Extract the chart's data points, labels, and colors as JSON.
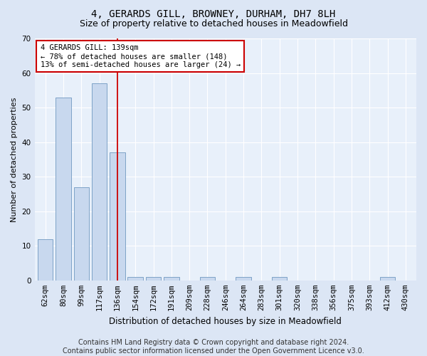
{
  "title": "4, GERARDS GILL, BROWNEY, DURHAM, DH7 8LH",
  "subtitle": "Size of property relative to detached houses in Meadowfield",
  "xlabel": "Distribution of detached houses by size in Meadowfield",
  "ylabel": "Number of detached properties",
  "categories": [
    "62sqm",
    "80sqm",
    "99sqm",
    "117sqm",
    "136sqm",
    "154sqm",
    "172sqm",
    "191sqm",
    "209sqm",
    "228sqm",
    "246sqm",
    "264sqm",
    "283sqm",
    "301sqm",
    "320sqm",
    "338sqm",
    "356sqm",
    "375sqm",
    "393sqm",
    "412sqm",
    "430sqm"
  ],
  "values": [
    12,
    53,
    27,
    57,
    37,
    1,
    1,
    1,
    0,
    1,
    0,
    1,
    0,
    1,
    0,
    0,
    0,
    0,
    0,
    1,
    0
  ],
  "bar_color": "#c8d8ee",
  "bar_edge_color": "#7098c0",
  "vline_x_index": 4,
  "vline_color": "#cc0000",
  "ylim": [
    0,
    70
  ],
  "yticks": [
    0,
    10,
    20,
    30,
    40,
    50,
    60,
    70
  ],
  "annotation_line1": "4 GERARDS GILL: 139sqm",
  "annotation_line2": "← 78% of detached houses are smaller (148)",
  "annotation_line3": "13% of semi-detached houses are larger (24) →",
  "annotation_box_color": "#ffffff",
  "annotation_box_edge": "#cc0000",
  "bg_color": "#dce6f5",
  "plot_bg_color": "#e8f0fa",
  "grid_color": "#ffffff",
  "footer_line1": "Contains HM Land Registry data © Crown copyright and database right 2024.",
  "footer_line2": "Contains public sector information licensed under the Open Government Licence v3.0.",
  "title_fontsize": 10,
  "subtitle_fontsize": 9,
  "xlabel_fontsize": 8.5,
  "ylabel_fontsize": 8,
  "tick_fontsize": 7.5,
  "annotation_fontsize": 7.5,
  "footer_fontsize": 7
}
